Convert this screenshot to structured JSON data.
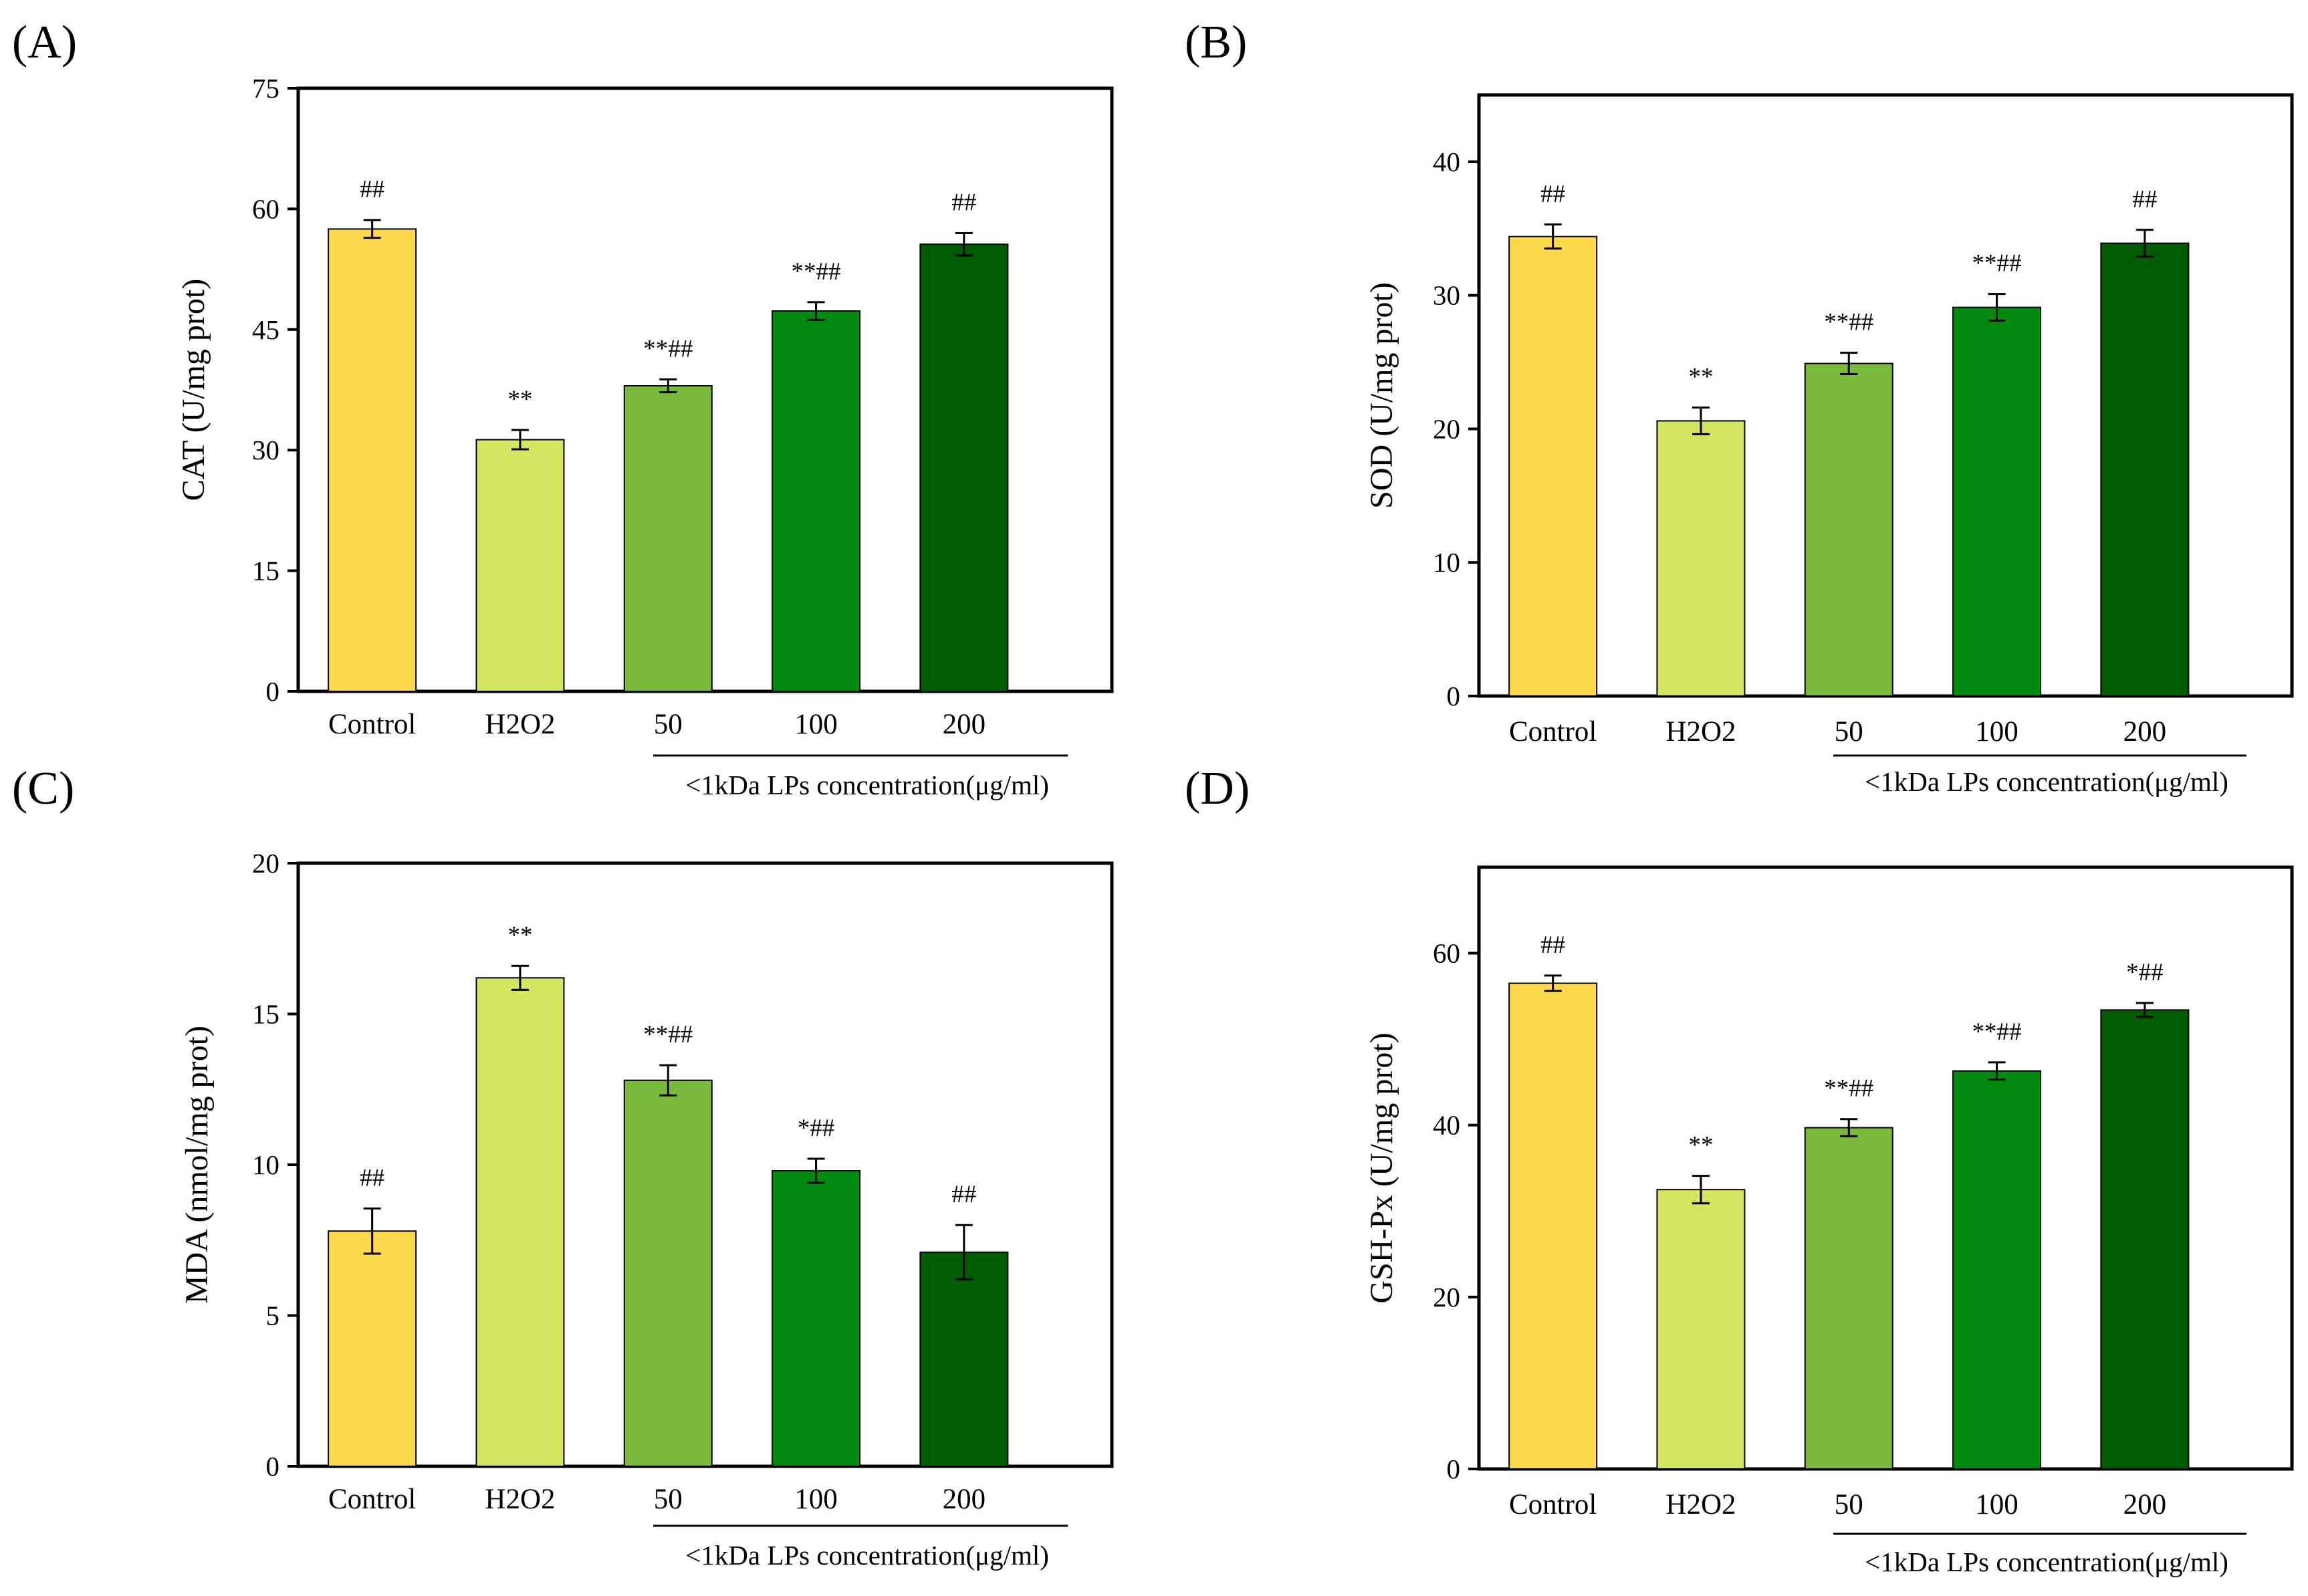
{
  "chart_data": [
    {
      "type": "bar",
      "panel": "(A)",
      "ylabel": "CAT (U/mg prot)",
      "categories": [
        "Control",
        "H2O2",
        "50",
        "100",
        "200"
      ],
      "values": [
        57.5,
        31.3,
        38.0,
        47.3,
        55.6
      ],
      "errors": [
        1.1,
        1.2,
        0.8,
        1.1,
        1.4
      ],
      "significance": [
        "##",
        "**",
        "**##",
        "**##",
        "##"
      ],
      "yticks": [
        "0",
        "15",
        "30",
        "45",
        "60",
        "75"
      ],
      "ylim": [
        0,
        75
      ],
      "group_label": "<1kDa LPs concentration(μg/ml)",
      "colors": [
        "#ffd94d",
        "#d4e65f",
        "#7aba3a",
        "#018a0f",
        "#005c00"
      ]
    },
    {
      "type": "bar",
      "panel": "(B)",
      "ylabel": "SOD (U/mg prot)",
      "categories": [
        "Control",
        "H2O2",
        "50",
        "100",
        "200"
      ],
      "values": [
        34.4,
        20.6,
        24.9,
        29.1,
        33.9
      ],
      "errors": [
        0.9,
        1.0,
        0.8,
        1.0,
        1.0
      ],
      "significance": [
        "##",
        "**",
        "**##",
        "**##",
        "##"
      ],
      "yticks": [
        "0",
        "10",
        "20",
        "30",
        "40"
      ],
      "ylim": [
        0,
        45
      ],
      "group_label": "<1kDa LPs concentration(μg/ml)",
      "colors": [
        "#ffd94d",
        "#d4e65f",
        "#7aba3a",
        "#018a0f",
        "#005c00"
      ]
    },
    {
      "type": "bar",
      "panel": "(C)",
      "ylabel": "MDA (nmol/mg prot)",
      "categories": [
        "Control",
        "H2O2",
        "50",
        "100",
        "200"
      ],
      "values": [
        7.8,
        16.2,
        12.8,
        9.8,
        7.1
      ],
      "errors": [
        0.75,
        0.4,
        0.5,
        0.4,
        0.9
      ],
      "significance": [
        "##",
        "**",
        "**##",
        "*##",
        "##"
      ],
      "yticks": [
        "0",
        "5",
        "10",
        "15",
        "20"
      ],
      "ylim": [
        0,
        20
      ],
      "group_label": "<1kDa LPs concentration(μg/ml)",
      "colors": [
        "#ffd94d",
        "#d4e65f",
        "#7aba3a",
        "#018a0f",
        "#005c00"
      ]
    },
    {
      "type": "bar",
      "panel": "(D)",
      "ylabel": "GSH-Px (U/mg prot)",
      "categories": [
        "Control",
        "H2O2",
        "50",
        "100",
        "200"
      ],
      "values": [
        56.5,
        32.5,
        39.7,
        46.3,
        53.4
      ],
      "errors": [
        0.9,
        1.6,
        1.0,
        1.0,
        0.8
      ],
      "significance": [
        "##",
        "**",
        "**##",
        "**##",
        "*##"
      ],
      "yticks": [
        "0",
        "20",
        "40",
        "60"
      ],
      "ylim": [
        0,
        70
      ],
      "group_label": "<1kDa LPs concentration(μg/ml)",
      "colors": [
        "#ffd94d",
        "#d4e65f",
        "#7aba3a",
        "#018a0f",
        "#005c00"
      ]
    }
  ]
}
